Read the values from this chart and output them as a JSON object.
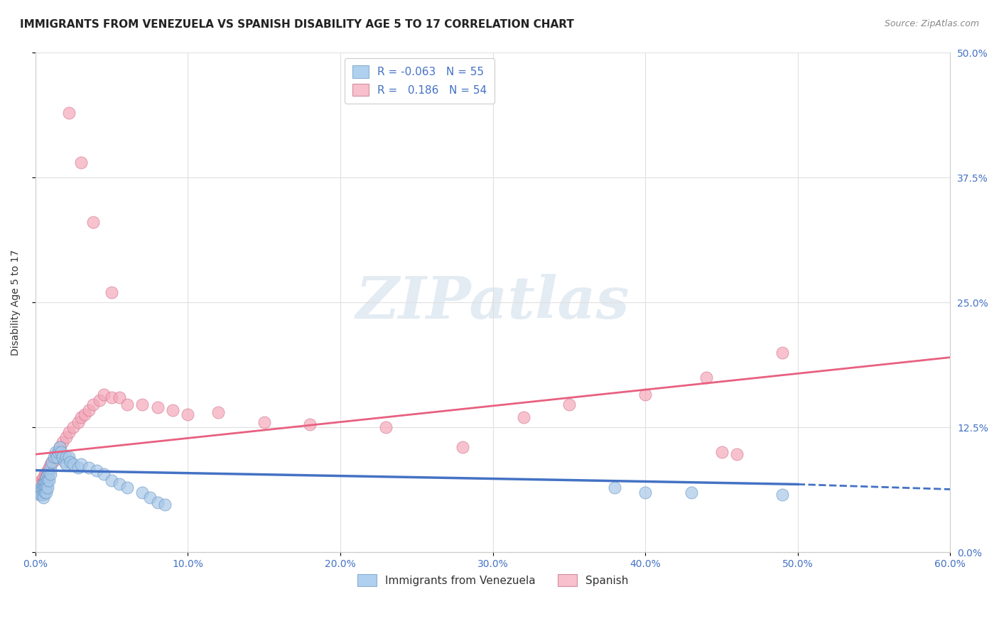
{
  "title": "IMMIGRANTS FROM VENEZUELA VS SPANISH DISABILITY AGE 5 TO 17 CORRELATION CHART",
  "source": "Source: ZipAtlas.com",
  "xlabel_ticks": [
    "0.0%",
    "10.0%",
    "20.0%",
    "30.0%",
    "40.0%",
    "50.0%",
    "60.0%"
  ],
  "xlabel_vals": [
    0.0,
    0.1,
    0.2,
    0.3,
    0.4,
    0.5,
    0.6
  ],
  "ylabel_ticks_right": [
    "50.0%",
    "37.5%",
    "25.0%",
    "12.5%",
    "0.0%"
  ],
  "ylabel_vals": [
    0.0,
    0.125,
    0.25,
    0.375,
    0.5
  ],
  "xlim": [
    0.0,
    0.6
  ],
  "ylim": [
    0.0,
    0.5
  ],
  "ylabel": "Disability Age 5 to 17",
  "blue_color": "#a8c8e8",
  "pink_color": "#f4a8b8",
  "blue_edge_color": "#6090c0",
  "pink_edge_color": "#d07090",
  "blue_line_color": "#4472c4",
  "pink_line_color": "#e86080",
  "blue_legend_color": "#b0d0f0",
  "pink_legend_color": "#f8c0cc",
  "blue_scatter_x": [
    0.002,
    0.003,
    0.003,
    0.004,
    0.004,
    0.004,
    0.005,
    0.005,
    0.005,
    0.005,
    0.005,
    0.006,
    0.006,
    0.006,
    0.007,
    0.007,
    0.007,
    0.007,
    0.008,
    0.008,
    0.008,
    0.009,
    0.009,
    0.01,
    0.01,
    0.011,
    0.012,
    0.013,
    0.014,
    0.015,
    0.016,
    0.017,
    0.018,
    0.019,
    0.02,
    0.02,
    0.022,
    0.023,
    0.025,
    0.028,
    0.03,
    0.035,
    0.04,
    0.045,
    0.05,
    0.055,
    0.06,
    0.07,
    0.075,
    0.08,
    0.085,
    0.38,
    0.4,
    0.43,
    0.49
  ],
  "blue_scatter_y": [
    0.062,
    0.06,
    0.058,
    0.065,
    0.062,
    0.058,
    0.068,
    0.065,
    0.062,
    0.058,
    0.055,
    0.07,
    0.065,
    0.06,
    0.075,
    0.07,
    0.065,
    0.06,
    0.078,
    0.072,
    0.065,
    0.08,
    0.072,
    0.085,
    0.078,
    0.09,
    0.095,
    0.1,
    0.095,
    0.1,
    0.105,
    0.1,
    0.095,
    0.09,
    0.095,
    0.088,
    0.095,
    0.09,
    0.088,
    0.085,
    0.088,
    0.085,
    0.082,
    0.078,
    0.072,
    0.068,
    0.065,
    0.06,
    0.055,
    0.05,
    0.048,
    0.065,
    0.06,
    0.06,
    0.058
  ],
  "pink_scatter_x": [
    0.002,
    0.003,
    0.004,
    0.004,
    0.005,
    0.005,
    0.006,
    0.006,
    0.007,
    0.007,
    0.008,
    0.008,
    0.009,
    0.01,
    0.011,
    0.012,
    0.013,
    0.014,
    0.015,
    0.016,
    0.018,
    0.02,
    0.022,
    0.025,
    0.028,
    0.03,
    0.032,
    0.035,
    0.038,
    0.042,
    0.045,
    0.05,
    0.055,
    0.06,
    0.07,
    0.08,
    0.09,
    0.1,
    0.12,
    0.15,
    0.18,
    0.23,
    0.28,
    0.32,
    0.35,
    0.4,
    0.44,
    0.45,
    0.46,
    0.49,
    0.022,
    0.03,
    0.038,
    0.05
  ],
  "pink_scatter_y": [
    0.068,
    0.065,
    0.072,
    0.068,
    0.075,
    0.07,
    0.078,
    0.072,
    0.08,
    0.075,
    0.082,
    0.078,
    0.085,
    0.088,
    0.09,
    0.092,
    0.095,
    0.098,
    0.1,
    0.105,
    0.11,
    0.115,
    0.12,
    0.125,
    0.13,
    0.135,
    0.138,
    0.142,
    0.148,
    0.152,
    0.158,
    0.155,
    0.155,
    0.148,
    0.148,
    0.145,
    0.142,
    0.138,
    0.14,
    0.13,
    0.128,
    0.125,
    0.105,
    0.135,
    0.148,
    0.158,
    0.175,
    0.1,
    0.098,
    0.2,
    0.44,
    0.39,
    0.33,
    0.26
  ],
  "background_color": "#ffffff",
  "grid_color": "#e0e0e0",
  "title_fontsize": 11,
  "axis_label_fontsize": 10,
  "tick_fontsize": 10,
  "watermark": "ZIPatlas",
  "blue_line_x0": 0.0,
  "blue_line_x1": 0.5,
  "blue_line_x2": 0.6,
  "blue_line_y0": 0.082,
  "blue_line_y1": 0.068,
  "blue_line_y2": 0.063,
  "pink_line_x0": 0.0,
  "pink_line_x1": 0.6,
  "pink_line_y0": 0.098,
  "pink_line_y1": 0.195
}
